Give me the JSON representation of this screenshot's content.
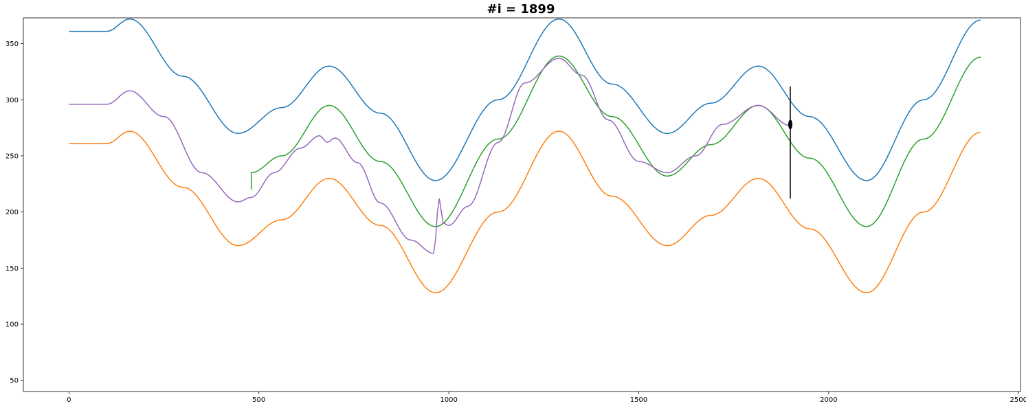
{
  "chart_data": {
    "type": "line",
    "title": "#i = 1899",
    "xlabel": "",
    "ylabel": "",
    "xlim": [
      -120,
      2505
    ],
    "ylim": [
      40,
      373
    ],
    "xticks": [
      0,
      500,
      1000,
      1500,
      2000,
      2500
    ],
    "yticks": [
      50,
      100,
      150,
      200,
      250,
      300,
      350
    ],
    "grid": false,
    "legend": "none",
    "series": [
      {
        "color": "#1f77b4",
        "x": [
          0,
          100,
          160,
          300,
          445,
          560,
          685,
          820,
          965,
          1130,
          1290,
          1430,
          1575,
          1690,
          1815,
          1950,
          2100,
          2250,
          2400
        ],
        "y": [
          361,
          361,
          372,
          321,
          270,
          293,
          330,
          288,
          228,
          300,
          372,
          314,
          270,
          297,
          330,
          285,
          228,
          300,
          371
        ]
      },
      {
        "color": "#ff7f0e",
        "x": [
          0,
          100,
          160,
          300,
          445,
          560,
          685,
          820,
          965,
          1130,
          1290,
          1430,
          1575,
          1690,
          1815,
          1950,
          2100,
          2250,
          2400
        ],
        "y": [
          261,
          261,
          272,
          222,
          170,
          193,
          230,
          188,
          128,
          200,
          272,
          214,
          170,
          197,
          230,
          185,
          128,
          200,
          271
        ]
      },
      {
        "color": "#2ca02c",
        "x": [
          480,
          480,
          560,
          685,
          820,
          965,
          1130,
          1290,
          1430,
          1575,
          1690,
          1815,
          1950,
          2100,
          2250,
          2400
        ],
        "y": [
          220,
          235,
          250,
          295,
          245,
          187,
          265,
          339,
          285,
          232,
          260,
          295,
          248,
          187,
          265,
          338
        ]
      },
      {
        "color": "#9467bd",
        "x": [
          0,
          100,
          160,
          250,
          350,
          445,
          480,
          540,
          610,
          660,
          680,
          700,
          760,
          820,
          900,
          960,
          975,
          985,
          1000,
          1050,
          1130,
          1200,
          1290,
          1350,
          1420,
          1500,
          1575,
          1650,
          1720,
          1815,
          1899
        ],
        "y": [
          296,
          296,
          308,
          285,
          235,
          209,
          213,
          235,
          257,
          268,
          262,
          266,
          244,
          208,
          175,
          163,
          212,
          190,
          188,
          205,
          262,
          315,
          337,
          322,
          282,
          245,
          235,
          250,
          278,
          295,
          277
        ]
      }
    ],
    "annotations": [
      {
        "type": "vline",
        "x": 1899,
        "y": [
          212,
          312
        ],
        "color": "#000000"
      },
      {
        "type": "marker",
        "x": 1899,
        "y": 278,
        "color": "#000000"
      }
    ]
  }
}
